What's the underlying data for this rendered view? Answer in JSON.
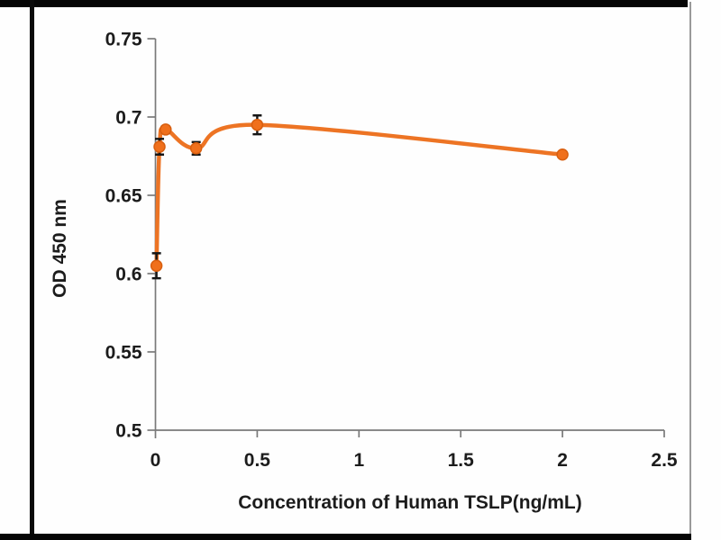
{
  "figure": {
    "background": "#fefefe",
    "frame_color": "#050505",
    "right_border_color": "#9a9a9a"
  },
  "chart_data": {
    "type": "line",
    "title": "",
    "xlabel": "Concentration of Human TSLP(ng/mL)",
    "ylabel": "OD 450 nm",
    "xlim": [
      0,
      2.5
    ],
    "ylim": [
      0.5,
      0.75
    ],
    "grid": false,
    "legend": "none",
    "line_color": "#ED7424",
    "marker_color": "#F0701C",
    "marker_outline": "#D85F10",
    "errorbar_color": "#151515",
    "axis_color": "#7a7a7a",
    "text_color": "#1c1c1c",
    "xticks": [
      {
        "v": 0,
        "label": "0"
      },
      {
        "v": 0.5,
        "label": "0.5"
      },
      {
        "v": 1,
        "label": "1"
      },
      {
        "v": 1.5,
        "label": "1.5"
      },
      {
        "v": 2,
        "label": "2"
      },
      {
        "v": 2.5,
        "label": "2.5"
      }
    ],
    "yticks": [
      {
        "v": 0.5,
        "label": "0.5"
      },
      {
        "v": 0.55,
        "label": "0.55"
      },
      {
        "v": 0.6,
        "label": "0.6"
      },
      {
        "v": 0.65,
        "label": "0.65"
      },
      {
        "v": 0.7,
        "label": "0.7"
      },
      {
        "v": 0.75,
        "label": "0.75"
      }
    ],
    "points": [
      {
        "x": 0.005,
        "y": 0.605,
        "err": 0.008
      },
      {
        "x": 0.02,
        "y": 0.681,
        "err": 0.005
      },
      {
        "x": 0.05,
        "y": 0.692,
        "err": 0.002
      },
      {
        "x": 0.2,
        "y": 0.68,
        "err": 0.004
      },
      {
        "x": 0.5,
        "y": 0.695,
        "err": 0.006
      },
      {
        "x": 2,
        "y": 0.676,
        "err": 0
      }
    ]
  }
}
